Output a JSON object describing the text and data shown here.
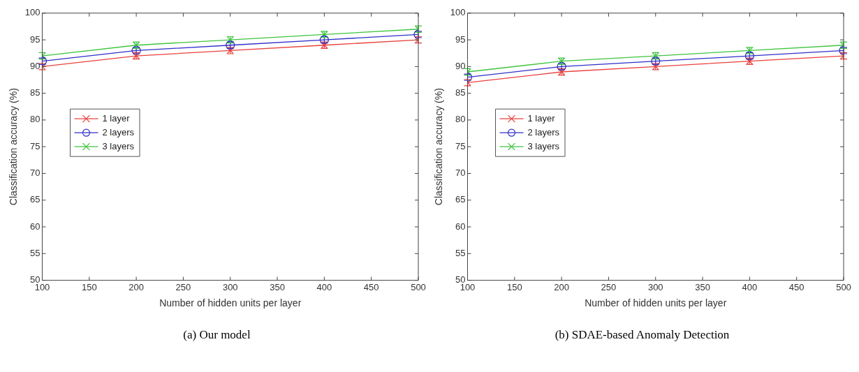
{
  "chart_data": [
    {
      "type": "line",
      "title": "(a) Our model",
      "xlabel": "Number of hidden units per layer",
      "ylabel": "Classification accuracy (%)",
      "x": [
        100,
        200,
        300,
        400,
        500
      ],
      "xlim": [
        100,
        500
      ],
      "xticks": [
        100,
        150,
        200,
        250,
        300,
        350,
        400,
        450,
        500
      ],
      "ylim": [
        50,
        100
      ],
      "yticks": [
        50,
        55,
        60,
        65,
        70,
        75,
        80,
        85,
        90,
        95,
        100
      ],
      "grid": false,
      "legend": "center left",
      "line_style": "solid",
      "series": [
        {
          "name": "1 layer",
          "color": "#e8413c",
          "marker": "cross",
          "values": [
            90,
            92,
            93,
            94,
            95
          ],
          "errors": [
            0.6,
            0.6,
            0.6,
            0.6,
            0.6
          ]
        },
        {
          "name": "2 layers",
          "color": "#2f2fc8",
          "marker": "circle",
          "values": [
            91,
            93,
            94,
            95,
            96
          ],
          "errors": [
            0.6,
            0.6,
            0.6,
            0.6,
            0.6
          ]
        },
        {
          "name": "3 layers",
          "color": "#3ec43e",
          "marker": "cross",
          "values": [
            92,
            94,
            95,
            96,
            97
          ],
          "errors": [
            0.6,
            0.6,
            0.6,
            0.6,
            0.6
          ]
        }
      ]
    },
    {
      "type": "line",
      "title": "(b) SDAE-based Anomaly Detection",
      "xlabel": "Number of hidden units per layer",
      "ylabel": "Classification accuracy (%)",
      "x": [
        100,
        200,
        300,
        400,
        500
      ],
      "xlim": [
        100,
        500
      ],
      "xticks": [
        100,
        150,
        200,
        250,
        300,
        350,
        400,
        450,
        500
      ],
      "ylim": [
        50,
        100
      ],
      "yticks": [
        50,
        55,
        60,
        65,
        70,
        75,
        80,
        85,
        90,
        95,
        100
      ],
      "grid": false,
      "legend": "center left",
      "line_style": "solid",
      "series": [
        {
          "name": "1 layer",
          "color": "#e8413c",
          "marker": "cross",
          "values": [
            87,
            89,
            90,
            91,
            92
          ],
          "errors": [
            0.6,
            0.6,
            0.6,
            0.6,
            0.6
          ]
        },
        {
          "name": "2 layers",
          "color": "#2f2fc8",
          "marker": "circle",
          "values": [
            88,
            90,
            91,
            92,
            93
          ],
          "errors": [
            0.6,
            0.6,
            0.6,
            0.6,
            0.6
          ]
        },
        {
          "name": "3 layers",
          "color": "#3ec43e",
          "marker": "cross",
          "values": [
            89,
            91,
            92,
            93,
            94
          ],
          "errors": [
            0.6,
            0.6,
            0.6,
            0.6,
            0.6
          ]
        }
      ]
    }
  ]
}
